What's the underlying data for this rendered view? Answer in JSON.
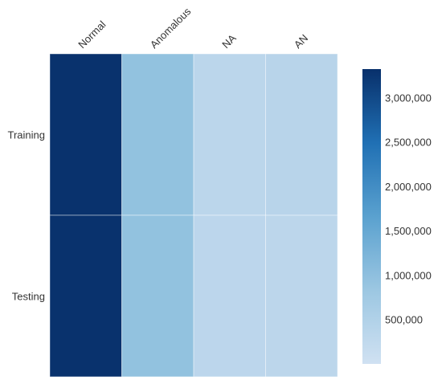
{
  "chart_data": {
    "type": "heatmap",
    "title": "",
    "xlabel": "",
    "ylabel": "",
    "x_categories": [
      "Normal",
      "Anomalous",
      "NA",
      "AN"
    ],
    "y_categories": [
      "Training",
      "Testing"
    ],
    "values": [
      [
        3300000,
        950000,
        250000,
        300000
      ],
      [
        3300000,
        950000,
        220000,
        230000
      ]
    ],
    "colorbar": {
      "min": 0,
      "max": 3320000,
      "ticks": [
        500000,
        1000000,
        1500000,
        2000000,
        2500000,
        3000000
      ],
      "tick_labels": [
        "500,000",
        "1,000,000",
        "1,500,000",
        "2,000,000",
        "2,500,000",
        "3,000,000"
      ],
      "position": "right"
    },
    "colormap": [
      "#c8dcef",
      "#9cc7e2",
      "#5aa1cf",
      "#2070b4",
      "#08306b"
    ],
    "grid": false
  }
}
